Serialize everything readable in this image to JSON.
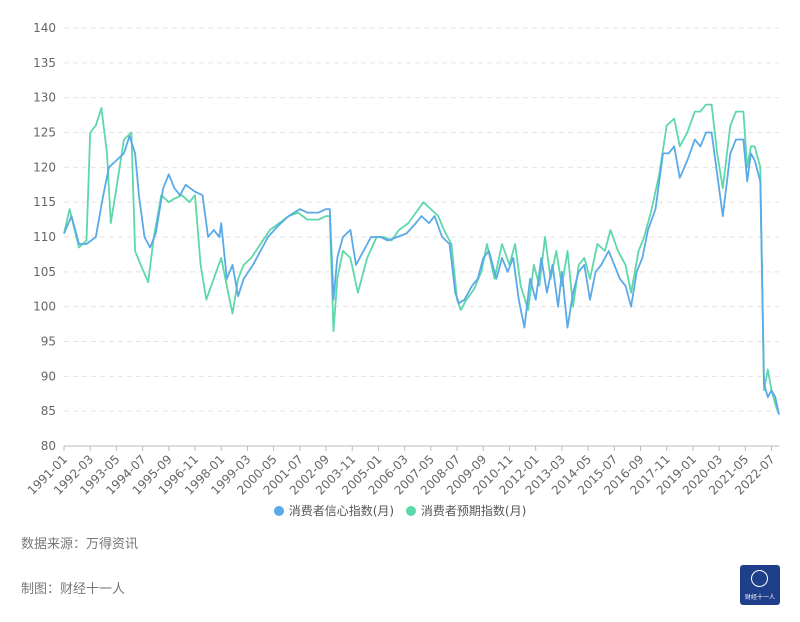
{
  "chart_data": {
    "type": "line",
    "title": "",
    "xlabel": "",
    "ylabel": "",
    "ylim": [
      80,
      140
    ],
    "yticks": [
      "80",
      "85",
      "90",
      "95",
      "100",
      "105",
      "110",
      "115",
      "120",
      "125",
      "130",
      "135",
      "140"
    ],
    "xtick_labels": [
      "1991-01",
      "1992-03",
      "1993-05",
      "1994-07",
      "1995-09",
      "1996-11",
      "1998-01",
      "1999-03",
      "2000-05",
      "2001-07",
      "2002-09",
      "2003-11",
      "2005-01",
      "2006-03",
      "2007-05",
      "2008-07",
      "2009-09",
      "2010-11",
      "2012-01",
      "2013-03",
      "2014-05",
      "2015-07",
      "2016-09",
      "2017-11",
      "2019-01",
      "2020-03",
      "2021-05",
      "2022-07"
    ],
    "x_start": "1991-01",
    "x_end": "2022-11",
    "grid": true,
    "legend_position": "bottom",
    "series": [
      {
        "name": "消费者信心指数(月)",
        "color": "#5aa9e8",
        "points": [
          [
            "1991-01",
            110.5
          ],
          [
            "1991-05",
            113
          ],
          [
            "1991-09",
            109
          ],
          [
            "1992-01",
            109
          ],
          [
            "1992-06",
            110
          ],
          [
            "1992-10",
            116
          ],
          [
            "1993-01",
            120
          ],
          [
            "1993-05",
            121
          ],
          [
            "1993-09",
            122
          ],
          [
            "1993-12",
            124.5
          ],
          [
            "1994-03",
            122
          ],
          [
            "1994-05",
            116
          ],
          [
            "1994-08",
            110
          ],
          [
            "1994-11",
            108.5
          ],
          [
            "1995-02",
            110.5
          ],
          [
            "1995-06",
            117
          ],
          [
            "1995-09",
            119
          ],
          [
            "1995-12",
            117
          ],
          [
            "1996-03",
            116
          ],
          [
            "1996-06",
            117.5
          ],
          [
            "1996-11",
            116.5
          ],
          [
            "1997-03",
            116
          ],
          [
            "1997-06",
            110
          ],
          [
            "1997-09",
            111
          ],
          [
            "1997-12",
            110
          ],
          [
            "1998-01",
            112
          ],
          [
            "1998-04",
            104
          ],
          [
            "1998-07",
            106
          ],
          [
            "1998-10",
            101.5
          ],
          [
            "1999-01",
            104
          ],
          [
            "1999-06",
            106
          ],
          [
            "1999-10",
            108
          ],
          [
            "2000-02",
            110
          ],
          [
            "2000-07",
            111.5
          ],
          [
            "2001-01",
            113
          ],
          [
            "2001-07",
            114
          ],
          [
            "2001-11",
            113.5
          ],
          [
            "2002-05",
            113.5
          ],
          [
            "2002-09",
            114
          ],
          [
            "2002-11",
            114
          ],
          [
            "2003-01",
            101
          ],
          [
            "2003-03",
            107
          ],
          [
            "2003-06",
            110
          ],
          [
            "2003-10",
            111
          ],
          [
            "2004-01",
            106
          ],
          [
            "2004-05",
            108
          ],
          [
            "2004-09",
            110
          ],
          [
            "2005-02",
            110
          ],
          [
            "2005-06",
            109.5
          ],
          [
            "2005-11",
            110
          ],
          [
            "2006-04",
            110.5
          ],
          [
            "2006-09",
            112
          ],
          [
            "2006-12",
            113
          ],
          [
            "2007-04",
            112
          ],
          [
            "2007-07",
            113
          ],
          [
            "2007-11",
            110
          ],
          [
            "2008-03",
            109
          ],
          [
            "2008-06",
            102
          ],
          [
            "2008-08",
            100.5
          ],
          [
            "2008-11",
            101
          ],
          [
            "2009-03",
            103
          ],
          [
            "2009-06",
            104
          ],
          [
            "2009-09",
            107
          ],
          [
            "2009-12",
            108
          ],
          [
            "2010-04",
            104
          ],
          [
            "2010-07",
            107
          ],
          [
            "2010-10",
            105
          ],
          [
            "2011-01",
            107
          ],
          [
            "2011-04",
            101
          ],
          [
            "2011-07",
            97
          ],
          [
            "2011-10",
            104
          ],
          [
            "2012-01",
            101
          ],
          [
            "2012-04",
            107
          ],
          [
            "2012-07",
            102
          ],
          [
            "2012-10",
            106
          ],
          [
            "2013-01",
            100
          ],
          [
            "2013-03",
            105
          ],
          [
            "2013-06",
            97
          ],
          [
            "2013-09",
            102
          ],
          [
            "2013-12",
            105
          ],
          [
            "2014-03",
            106
          ],
          [
            "2014-06",
            101
          ],
          [
            "2014-09",
            105
          ],
          [
            "2014-12",
            106
          ],
          [
            "2015-04",
            108
          ],
          [
            "2015-07",
            106
          ],
          [
            "2015-10",
            104
          ],
          [
            "2016-01",
            103
          ],
          [
            "2016-04",
            100
          ],
          [
            "2016-07",
            105
          ],
          [
            "2016-10",
            107
          ],
          [
            "2017-01",
            111
          ],
          [
            "2017-05",
            114
          ],
          [
            "2017-09",
            122
          ],
          [
            "2017-12",
            122
          ],
          [
            "2018-03",
            123
          ],
          [
            "2018-06",
            118.5
          ],
          [
            "2018-10",
            121
          ],
          [
            "2019-02",
            124
          ],
          [
            "2019-05",
            123
          ],
          [
            "2019-08",
            125
          ],
          [
            "2019-11",
            125
          ],
          [
            "2020-02",
            119
          ],
          [
            "2020-05",
            113
          ],
          [
            "2020-09",
            122
          ],
          [
            "2020-12",
            124
          ],
          [
            "2021-04",
            124
          ],
          [
            "2021-06",
            118
          ],
          [
            "2021-08",
            122
          ],
          [
            "2021-10",
            121
          ],
          [
            "2022-01",
            118
          ],
          [
            "2022-03",
            89
          ],
          [
            "2022-05",
            87
          ],
          [
            "2022-07",
            88
          ],
          [
            "2022-09",
            87
          ],
          [
            "2022-11",
            84.5
          ]
        ]
      },
      {
        "name": "消费者预期指数(月)",
        "color": "#5dd8a8",
        "points": [
          [
            "1991-01",
            110.5
          ],
          [
            "1991-04",
            114
          ],
          [
            "1991-09",
            108.5
          ],
          [
            "1992-01",
            109.5
          ],
          [
            "1992-03",
            125
          ],
          [
            "1992-06",
            126
          ],
          [
            "1992-09",
            128.5
          ],
          [
            "1992-12",
            122
          ],
          [
            "1993-02",
            112
          ],
          [
            "1993-05",
            117
          ],
          [
            "1993-09",
            124
          ],
          [
            "1994-01",
            125
          ],
          [
            "1994-03",
            108
          ],
          [
            "1994-06",
            106
          ],
          [
            "1994-10",
            103.5
          ],
          [
            "1995-01",
            110
          ],
          [
            "1995-05",
            116
          ],
          [
            "1995-09",
            115
          ],
          [
            "1995-12",
            115.5
          ],
          [
            "1996-04",
            116
          ],
          [
            "1996-08",
            115
          ],
          [
            "1996-11",
            116
          ],
          [
            "1997-02",
            106
          ],
          [
            "1997-05",
            101
          ],
          [
            "1997-09",
            104
          ],
          [
            "1998-01",
            107
          ],
          [
            "1998-04",
            103
          ],
          [
            "1998-07",
            99
          ],
          [
            "1998-10",
            104
          ],
          [
            "1999-01",
            106
          ],
          [
            "1999-05",
            107
          ],
          [
            "1999-10",
            109
          ],
          [
            "2000-03",
            111
          ],
          [
            "2000-08",
            112
          ],
          [
            "2001-01",
            113
          ],
          [
            "2001-06",
            113.5
          ],
          [
            "2001-11",
            112.5
          ],
          [
            "2002-05",
            112.5
          ],
          [
            "2002-09",
            113
          ],
          [
            "2002-11",
            113
          ],
          [
            "2003-01",
            96.5
          ],
          [
            "2003-03",
            104
          ],
          [
            "2003-06",
            108
          ],
          [
            "2003-10",
            107
          ],
          [
            "2004-02",
            102
          ],
          [
            "2004-07",
            107
          ],
          [
            "2004-12",
            110
          ],
          [
            "2005-04",
            110
          ],
          [
            "2005-08",
            109.5
          ],
          [
            "2005-12",
            111
          ],
          [
            "2006-05",
            112
          ],
          [
            "2006-09",
            113.5
          ],
          [
            "2007-01",
            115
          ],
          [
            "2007-05",
            114
          ],
          [
            "2007-09",
            113
          ],
          [
            "2007-12",
            111
          ],
          [
            "2008-04",
            109
          ],
          [
            "2008-07",
            101
          ],
          [
            "2008-09",
            99.5
          ],
          [
            "2008-12",
            101
          ],
          [
            "2009-04",
            102.5
          ],
          [
            "2009-08",
            105
          ],
          [
            "2009-11",
            109
          ],
          [
            "2010-03",
            104
          ],
          [
            "2010-07",
            109
          ],
          [
            "2010-11",
            106
          ],
          [
            "2011-02",
            109
          ],
          [
            "2011-05",
            103
          ],
          [
            "2011-09",
            99.5
          ],
          [
            "2011-12",
            106
          ],
          [
            "2012-03",
            103
          ],
          [
            "2012-06",
            110
          ],
          [
            "2012-09",
            104
          ],
          [
            "2012-12",
            108
          ],
          [
            "2013-03",
            103
          ],
          [
            "2013-06",
            108
          ],
          [
            "2013-09",
            100
          ],
          [
            "2013-12",
            106
          ],
          [
            "2014-03",
            107
          ],
          [
            "2014-06",
            104
          ],
          [
            "2014-10",
            109
          ],
          [
            "2015-02",
            108
          ],
          [
            "2015-05",
            111
          ],
          [
            "2015-09",
            108
          ],
          [
            "2016-01",
            106
          ],
          [
            "2016-04",
            102
          ],
          [
            "2016-08",
            108
          ],
          [
            "2016-11",
            110
          ],
          [
            "2017-03",
            114
          ],
          [
            "2017-07",
            119
          ],
          [
            "2017-11",
            126
          ],
          [
            "2018-03",
            127
          ],
          [
            "2018-06",
            123
          ],
          [
            "2018-10",
            125
          ],
          [
            "2019-02",
            128
          ],
          [
            "2019-05",
            128
          ],
          [
            "2019-08",
            129
          ],
          [
            "2019-11",
            129
          ],
          [
            "2020-02",
            122
          ],
          [
            "2020-05",
            117
          ],
          [
            "2020-09",
            126
          ],
          [
            "2020-12",
            128
          ],
          [
            "2021-04",
            128
          ],
          [
            "2021-06",
            120
          ],
          [
            "2021-08",
            123
          ],
          [
            "2021-10",
            123
          ],
          [
            "2022-01",
            120
          ],
          [
            "2022-03",
            88
          ],
          [
            "2022-05",
            91
          ],
          [
            "2022-07",
            88
          ],
          [
            "2022-09",
            86
          ],
          [
            "2022-11",
            84.5
          ]
        ]
      }
    ]
  },
  "legend": {
    "items": [
      {
        "label": "消费者信心指数(月)",
        "color": "#5aa9e8"
      },
      {
        "label": "消费者预期指数(月)",
        "color": "#5dd8a8"
      }
    ]
  },
  "footer": {
    "source": "数据来源：万得资讯",
    "credit": "制图：财经十一人",
    "logo_text": "财经十一人"
  }
}
